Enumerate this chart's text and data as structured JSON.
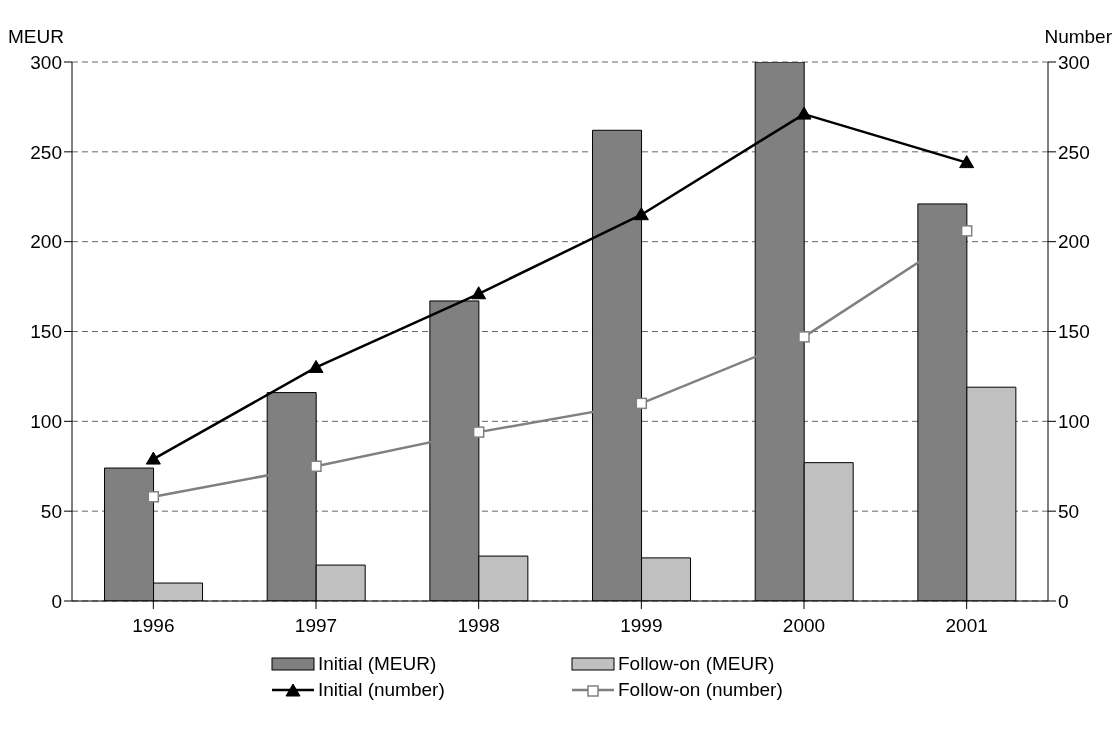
{
  "chart_data": {
    "type": "bar",
    "categories": [
      "1996",
      "1997",
      "1998",
      "1999",
      "2000",
      "2001"
    ],
    "series": [
      {
        "name": "Initial (MEUR)",
        "color": "#808080",
        "values": [
          74,
          116,
          167,
          262,
          300,
          221
        ]
      },
      {
        "name": "Follow-on (MEUR)",
        "color": "#c0c0c0",
        "values": [
          10,
          20,
          25,
          24,
          77,
          119
        ]
      },
      {
        "name": "Initial (number)",
        "type": "line",
        "axis": "y2",
        "color": "#000000",
        "marker": "triangle",
        "values": [
          79,
          130,
          171,
          215,
          271,
          244
        ]
      },
      {
        "name": "Follow-on (number)",
        "type": "line",
        "axis": "y2",
        "color": "#808080",
        "marker": "square",
        "values": [
          58,
          75,
          94,
          110,
          147,
          206
        ]
      }
    ],
    "ylabel": "MEUR",
    "y2label": "Number",
    "ylim": [
      0,
      300
    ],
    "yticks": [
      0,
      50,
      100,
      150,
      200,
      250,
      300
    ],
    "y2lim": [
      0,
      300
    ],
    "y2ticks": [
      0,
      50,
      100,
      150,
      200,
      250,
      300
    ],
    "grid": "y",
    "legend": "bottom"
  }
}
